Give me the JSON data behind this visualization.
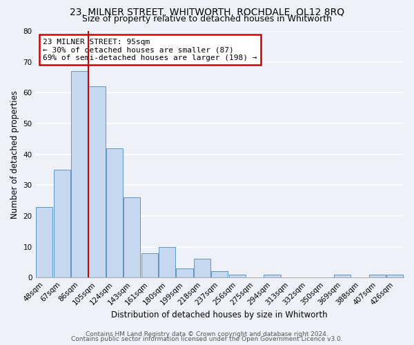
{
  "title": "23, MILNER STREET, WHITWORTH, ROCHDALE, OL12 8RQ",
  "subtitle": "Size of property relative to detached houses in Whitworth",
  "xlabel": "Distribution of detached houses by size in Whitworth",
  "ylabel": "Number of detached properties",
  "categories": [
    "48sqm",
    "67sqm",
    "86sqm",
    "105sqm",
    "124sqm",
    "143sqm",
    "161sqm",
    "180sqm",
    "199sqm",
    "218sqm",
    "237sqm",
    "256sqm",
    "275sqm",
    "294sqm",
    "313sqm",
    "332sqm",
    "350sqm",
    "369sqm",
    "388sqm",
    "407sqm",
    "426sqm"
  ],
  "values": [
    23,
    35,
    67,
    62,
    42,
    26,
    8,
    10,
    3,
    6,
    2,
    1,
    0,
    1,
    0,
    0,
    0,
    1,
    0,
    1,
    1
  ],
  "bar_color": "#c5d8f0",
  "bar_edge_color": "#5a96c8",
  "vline_x": 2.5,
  "vline_color": "#cc0000",
  "annotation_text": "23 MILNER STREET: 95sqm\n← 30% of detached houses are smaller (87)\n69% of semi-detached houses are larger (198) →",
  "annotation_box_facecolor": "#ffffff",
  "annotation_box_edgecolor": "#cc0000",
  "ylim": [
    0,
    80
  ],
  "yticks": [
    0,
    10,
    20,
    30,
    40,
    50,
    60,
    70,
    80
  ],
  "bg_color": "#eef2f8",
  "grid_color": "#ffffff",
  "title_fontsize": 10,
  "subtitle_fontsize": 9,
  "axis_label_fontsize": 8.5,
  "tick_fontsize": 7.5,
  "annotation_fontsize": 8,
  "footer_fontsize": 6.5,
  "footer_line1": "Contains HM Land Registry data © Crown copyright and database right 2024.",
  "footer_line2": "Contains public sector information licensed under the Open Government Licence v3.0."
}
